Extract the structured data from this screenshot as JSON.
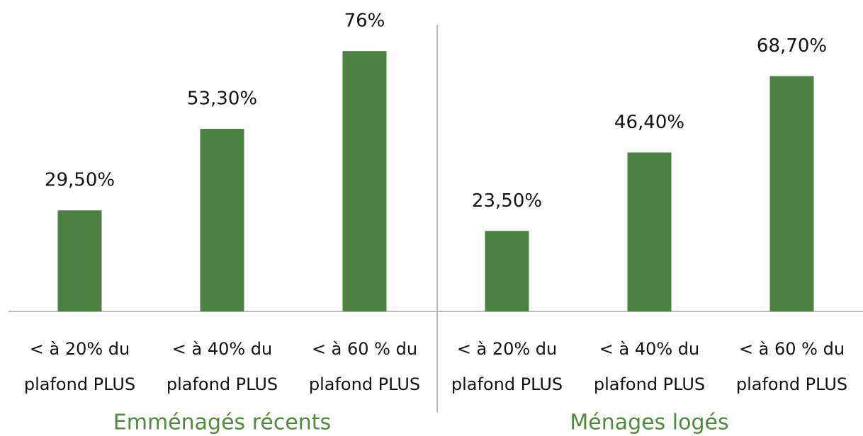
{
  "chart_data": {
    "type": "bar",
    "color": "#4b8141",
    "groups": [
      {
        "name": "Emménagés récents",
        "categories": [
          [
            "< à 20% du",
            "plafond PLUS"
          ],
          [
            "< à 40% du",
            "plafond PLUS"
          ],
          [
            "< à 60 % du",
            "plafond PLUS"
          ]
        ],
        "values": [
          29.5,
          53.3,
          76
        ],
        "value_labels": [
          "29,50%",
          "53,30%",
          "76%"
        ]
      },
      {
        "name": "Ménages logés",
        "categories": [
          [
            "< à 20% du",
            "plafond PLUS"
          ],
          [
            "< à 40% du",
            "plafond PLUS"
          ],
          [
            "< à 60 % du",
            "plafond PLUS"
          ]
        ],
        "values": [
          23.5,
          46.4,
          68.7
        ],
        "value_labels": [
          "23,50%",
          "46,40%",
          "68,70%"
        ]
      }
    ]
  }
}
